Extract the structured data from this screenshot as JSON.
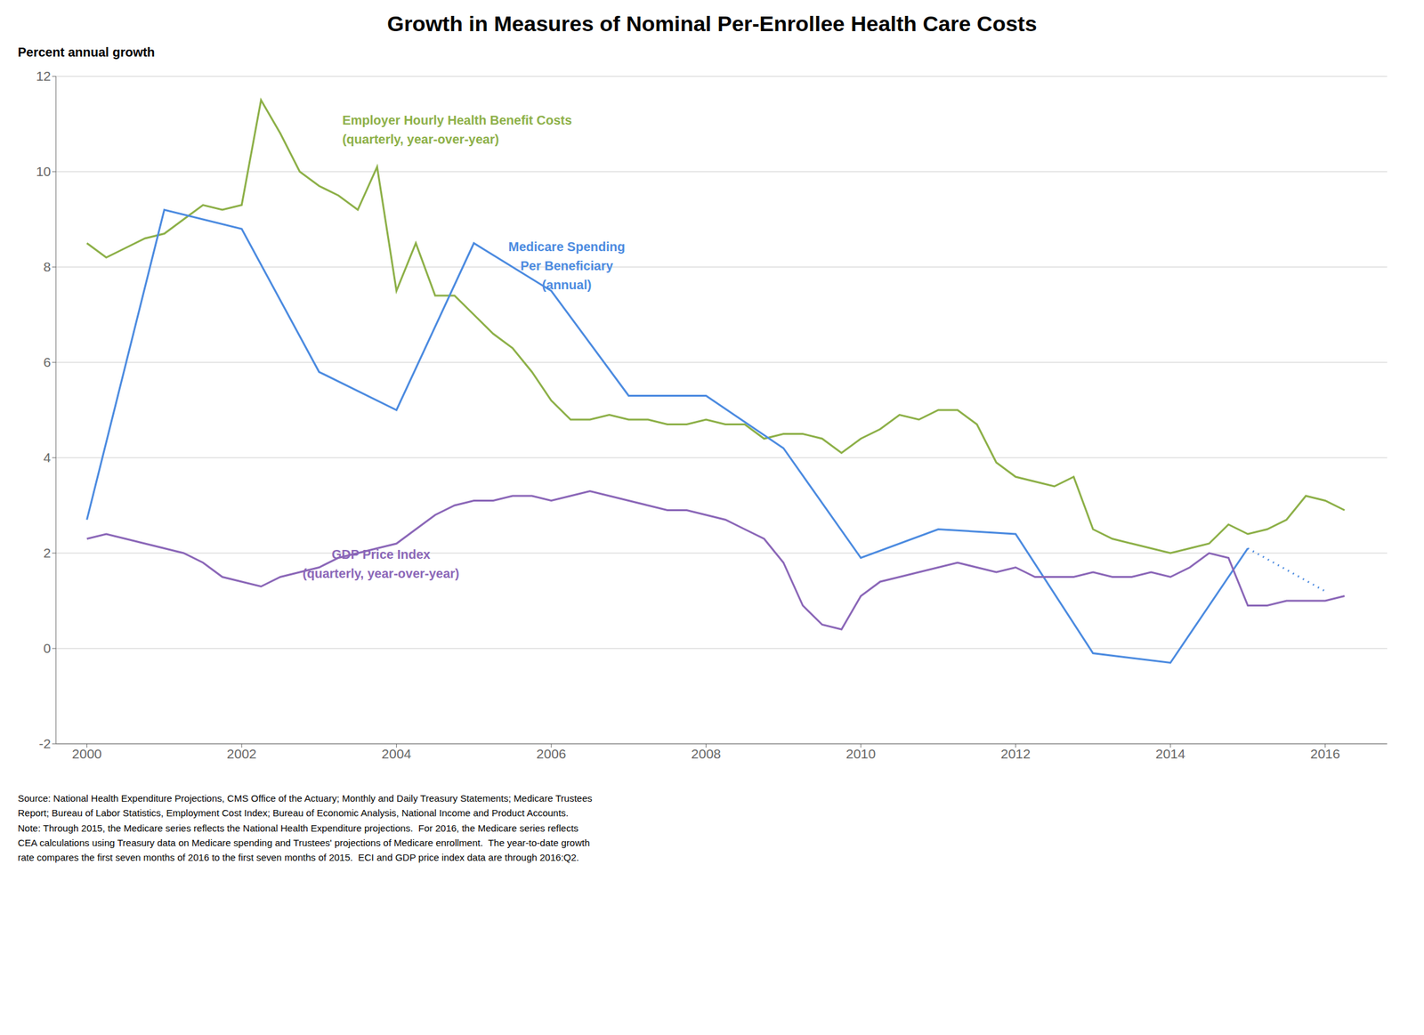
{
  "chart_data": {
    "type": "line",
    "title": "Growth in Measures of Nominal Per-Enrollee Health Care Costs",
    "y_label": "Percent annual growth",
    "xlim": [
      1999.6,
      2016.8
    ],
    "xticks": [
      2000,
      2002,
      2004,
      2006,
      2008,
      2010,
      2012,
      2014,
      2016
    ],
    "ylim": [
      -2,
      12
    ],
    "yticks": [
      -2,
      0,
      2,
      4,
      6,
      8,
      10,
      12
    ],
    "grid": true,
    "series": [
      {
        "color": "#8DB048",
        "line_style": "solid",
        "x": [
          2000.0,
          2000.25,
          2000.5,
          2000.75,
          2001.0,
          2001.25,
          2001.5,
          2001.75,
          2002.0,
          2002.25,
          2002.5,
          2002.75,
          2003.0,
          2003.25,
          2003.5,
          2003.75,
          2004.0,
          2004.25,
          2004.5,
          2004.75,
          2005.0,
          2005.25,
          2005.5,
          2005.75,
          2006.0,
          2006.25,
          2006.5,
          2006.75,
          2007.0,
          2007.25,
          2007.5,
          2007.75,
          2008.0,
          2008.25,
          2008.5,
          2008.75,
          2009.0,
          2009.25,
          2009.5,
          2009.75,
          2010.0,
          2010.25,
          2010.5,
          2010.75,
          2011.0,
          2011.25,
          2011.5,
          2011.75,
          2012.0,
          2012.25,
          2012.5,
          2012.75,
          2013.0,
          2013.25,
          2013.5,
          2013.75,
          2014.0,
          2014.25,
          2014.5,
          2014.75,
          2015.0,
          2015.25,
          2015.5,
          2015.75,
          2016.0,
          2016.25
        ],
        "values": [
          8.5,
          8.2,
          8.4,
          8.6,
          8.7,
          9.0,
          9.3,
          9.2,
          9.3,
          11.5,
          10.8,
          10.0,
          9.7,
          9.5,
          9.2,
          10.1,
          7.5,
          8.5,
          7.4,
          7.4,
          7.0,
          6.6,
          6.3,
          5.8,
          5.2,
          4.8,
          4.8,
          4.9,
          4.8,
          4.8,
          4.7,
          4.7,
          4.8,
          4.7,
          4.7,
          4.4,
          4.5,
          4.5,
          4.4,
          4.1,
          4.4,
          4.6,
          4.9,
          4.8,
          5.0,
          5.0,
          4.7,
          3.9,
          3.6,
          3.5,
          3.4,
          3.6,
          2.5,
          2.3,
          2.2,
          2.1,
          2.0,
          2.1,
          2.2,
          2.6,
          2.4,
          2.5,
          2.7,
          3.2,
          3.1,
          2.9
        ]
      },
      {
        "color": "#4C8BE0",
        "line_style": "solid",
        "x": [
          2000,
          2001,
          2002,
          2003,
          2004,
          2005,
          2006,
          2007,
          2008,
          2009,
          2010,
          2011,
          2012,
          2013,
          2014,
          2015
        ],
        "values": [
          2.7,
          9.2,
          8.8,
          5.8,
          5.0,
          8.5,
          7.5,
          5.3,
          5.3,
          4.2,
          1.9,
          2.5,
          2.4,
          -0.1,
          -0.3,
          2.1
        ]
      },
      {
        "color": "#4C8BE0",
        "line_style": "dotted",
        "x": [
          2015,
          2016
        ],
        "values": [
          2.1,
          1.2
        ]
      },
      {
        "color": "#8B67B8",
        "line_style": "solid",
        "x": [
          2000.0,
          2000.25,
          2000.5,
          2000.75,
          2001.0,
          2001.25,
          2001.5,
          2001.75,
          2002.0,
          2002.25,
          2002.5,
          2002.75,
          2003.0,
          2003.25,
          2003.5,
          2003.75,
          2004.0,
          2004.25,
          2004.5,
          2004.75,
          2005.0,
          2005.25,
          2005.5,
          2005.75,
          2006.0,
          2006.25,
          2006.5,
          2006.75,
          2007.0,
          2007.25,
          2007.5,
          2007.75,
          2008.0,
          2008.25,
          2008.5,
          2008.75,
          2009.0,
          2009.25,
          2009.5,
          2009.75,
          2010.0,
          2010.25,
          2010.5,
          2010.75,
          2011.0,
          2011.25,
          2011.5,
          2011.75,
          2012.0,
          2012.25,
          2012.5,
          2012.75,
          2013.0,
          2013.25,
          2013.5,
          2013.75,
          2014.0,
          2014.25,
          2014.5,
          2014.75,
          2015.0,
          2015.25,
          2015.5,
          2015.75,
          2016.0,
          2016.25
        ],
        "values": [
          2.3,
          2.4,
          2.3,
          2.2,
          2.1,
          2.0,
          1.8,
          1.5,
          1.4,
          1.3,
          1.5,
          1.6,
          1.7,
          1.9,
          2.0,
          2.1,
          2.2,
          2.5,
          2.8,
          3.0,
          3.1,
          3.1,
          3.2,
          3.2,
          3.1,
          3.2,
          3.3,
          3.2,
          3.1,
          3.0,
          2.9,
          2.9,
          2.8,
          2.7,
          2.5,
          2.3,
          1.8,
          0.9,
          0.5,
          0.4,
          1.1,
          1.4,
          1.5,
          1.6,
          1.7,
          1.8,
          1.7,
          1.6,
          1.7,
          1.5,
          1.5,
          1.5,
          1.6,
          1.5,
          1.5,
          1.6,
          1.5,
          1.7,
          2.0,
          1.9,
          0.9,
          0.9,
          1.0,
          1.0,
          1.0,
          1.1
        ]
      }
    ],
    "annotations": [
      {
        "text": [
          "Employer Hourly Health Benefit Costs",
          "(quarterly, year-over-year)"
        ],
        "x": 2003.3,
        "y": 11.25,
        "align": "left",
        "color": "#8DB048"
      },
      {
        "text": [
          "Medicare Spending",
          "Per Beneficiary",
          "(annual)"
        ],
        "x": 2006.2,
        "y": 8.6,
        "align": "center",
        "color": "#4C8BE0"
      },
      {
        "text": [
          "GDP Price Index",
          "(quarterly, year-over-year)"
        ],
        "x": 2003.8,
        "y": 2.15,
        "align": "center",
        "color": "#8B67B8"
      }
    ],
    "notes": [
      "Source: National Health Expenditure Projections, CMS Office of the Actuary; Monthly and Daily Treasury Statements; Medicare Trustees",
      "Report; Bureau of Labor Statistics, Employment Cost Index; Bureau of Economic Analysis, National Income and Product Accounts.",
      "Note: Through 2015, the Medicare series reflects the National Health Expenditure projections.  For 2016, the Medicare series reflects",
      "CEA calculations using Treasury data on Medicare spending and Trustees' projections of Medicare enrollment.  The year-to-date growth",
      "rate compares the first seven months of 2016 to the first seven months of 2015.  ECI and GDP price index data are through 2016:Q2."
    ]
  }
}
